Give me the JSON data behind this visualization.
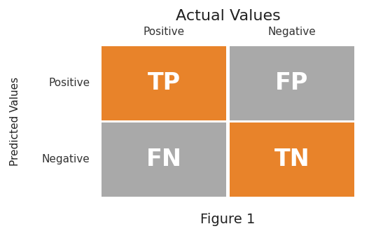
{
  "title": "Actual Values",
  "ylabel": "Predicted Values",
  "figure_caption": "Figure 1",
  "col_labels": [
    "Positive",
    "Negative"
  ],
  "row_labels": [
    "Positive",
    "Negative"
  ],
  "cells": [
    [
      "TP",
      "FP"
    ],
    [
      "FN",
      "TN"
    ]
  ],
  "cell_colors": [
    [
      "#E8832A",
      "#A9A9A9"
    ],
    [
      "#A9A9A9",
      "#E8832A"
    ]
  ],
  "text_color": "#FFFFFF",
  "bg_color": "#FFFFFF",
  "title_fontsize": 16,
  "col_label_fontsize": 11,
  "row_label_fontsize": 11,
  "ylabel_fontsize": 11,
  "cell_fontsize": 24,
  "caption_fontsize": 14
}
